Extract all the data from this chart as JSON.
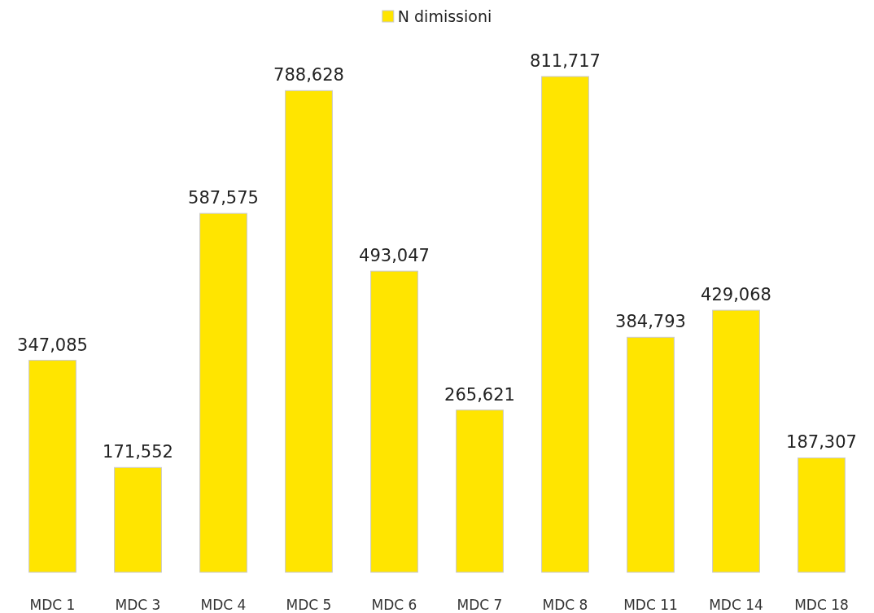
{
  "chart_data": {
    "type": "bar",
    "categories": [
      "MDC 1",
      "MDC 3",
      "MDC 4",
      "MDC 5",
      "MDC 6",
      "MDC 7",
      "MDC 8",
      "MDC 11",
      "MDC 14",
      "MDC 18"
    ],
    "series": [
      {
        "name": "N dimissioni",
        "color": "#ffe500",
        "values": [
          347085,
          171552,
          587575,
          788628,
          493047,
          265621,
          811717,
          384793,
          429068,
          187307
        ],
        "value_labels": [
          "347,085",
          "171,552",
          "587,575",
          "788,628",
          "493,047",
          "265,621",
          "811,717",
          "384,793",
          "429,068",
          "187,307"
        ]
      }
    ],
    "legend": "top"
  }
}
